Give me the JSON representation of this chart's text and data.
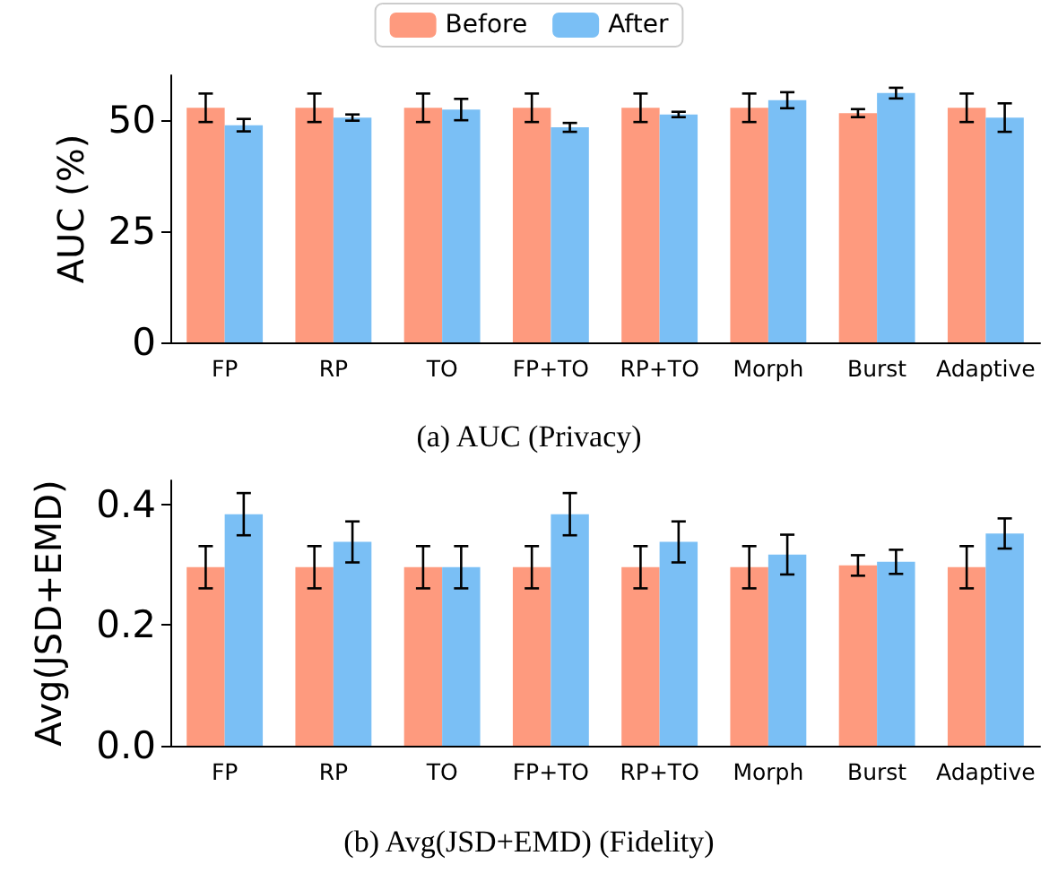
{
  "chart_data": [
    {
      "type": "bar",
      "title": "(a) AUC (Privacy)",
      "ylabel": "AUC (%)",
      "categories": [
        "FP",
        "RP",
        "TO",
        "FP+TO",
        "RP+TO",
        "Morph",
        "Burst",
        "Adaptive"
      ],
      "series": [
        {
          "name": "Before",
          "color": "#fe9a7e",
          "values": [
            52.7,
            52.7,
            52.7,
            52.7,
            52.7,
            52.7,
            51.5,
            52.7
          ],
          "errors": [
            3.2,
            3.2,
            3.2,
            3.2,
            3.2,
            3.2,
            0.9,
            3.2
          ]
        },
        {
          "name": "After",
          "color": "#7abff5",
          "values": [
            48.8,
            50.5,
            52.3,
            48.3,
            51.2,
            54.4,
            56.0,
            50.5
          ],
          "errors": [
            1.4,
            0.7,
            2.4,
            1.0,
            0.6,
            1.8,
            1.2,
            3.2
          ]
        }
      ],
      "ylim": [
        0,
        60
      ],
      "yticks": [
        0,
        25,
        50
      ],
      "grid": false,
      "legend": "top"
    },
    {
      "type": "bar",
      "title": "(b) Avg(JSD+EMD) (Fidelity)",
      "ylabel": "Avg(JSD+EMD)",
      "categories": [
        "FP",
        "RP",
        "TO",
        "FP+TO",
        "RP+TO",
        "Morph",
        "Burst",
        "Adaptive"
      ],
      "series": [
        {
          "color": "#fe9a7e",
          "values": [
            0.296,
            0.296,
            0.296,
            0.296,
            0.296,
            0.296,
            0.299,
            0.296
          ],
          "errors": [
            0.035,
            0.035,
            0.035,
            0.035,
            0.035,
            0.035,
            0.017,
            0.035
          ]
        },
        {
          "color": "#7abff5",
          "values": [
            0.384,
            0.338,
            0.296,
            0.384,
            0.338,
            0.317,
            0.305,
            0.352
          ],
          "errors": [
            0.035,
            0.034,
            0.035,
            0.035,
            0.034,
            0.033,
            0.02,
            0.025
          ]
        }
      ],
      "ylim": [
        0,
        0.44
      ],
      "yticks": [
        {
          "value": 0,
          "label": "0.0"
        },
        0.2,
        0.4
      ],
      "grid": false,
      "legend": false
    }
  ]
}
